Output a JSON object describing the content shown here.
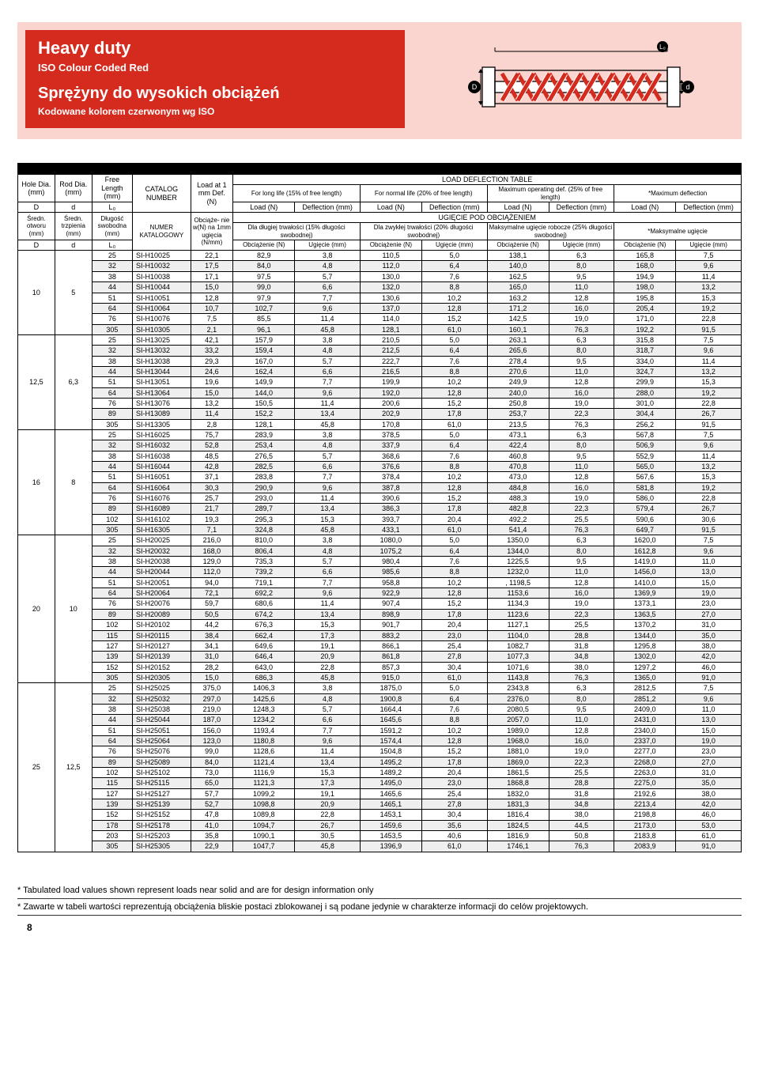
{
  "header": {
    "title_en": "Heavy duty",
    "sub_en": "ISO Colour Coded Red",
    "title_pl": "Sprężyny do wysokich obciążeń",
    "sub_pl": "Kodowane kolorem czerwonym wg ISO",
    "diagram_labels": {
      "L0": "L₀",
      "D": "D",
      "d": "d"
    },
    "band_color": "#fad4ce",
    "title_bg": "#d52b1e",
    "title_fg": "#ffffff",
    "coil_color": "#d52b1e"
  },
  "col_hdr_en": {
    "hole": "Hole Dia. (mm)",
    "rod": "Rod Dia. (mm)",
    "free": "Free Length (mm)",
    "catalog": "CATALOG NUMBER",
    "load": "Load at 1 mm Def. (N)",
    "ldt": "LOAD DEFLECTION TABLE",
    "long": "For long life (15% of free length)",
    "normal": "For normal life (20% of free length)",
    "max_op": "Maximum operating def. (25% of free length)",
    "max_def": "*Maximum deflection",
    "D": "D",
    "d": "d",
    "L0": "L₀",
    "loadN": "Load (N)",
    "defl": "Deflection (mm)"
  },
  "col_hdr_pl": {
    "hole": "Średn. otworu (mm)",
    "rod": "Średn. trzpienia (mm)",
    "free": "Długość swobodna (mm)",
    "catalog": "NUMER KATALOGOWY",
    "load": "Obciąże- nie w(N) na 1mm ugięcia (N/mm)",
    "ldt": "UGIĘCIE POD OBCIĄŻENIEM",
    "long": "Dla długiej trwałości (15% długości swobodnej)",
    "normal": "Dla zwykłej trwałości (20% długości swobodnej)",
    "max_op": "Maksymalne ugięcie robocze (25% długości swobodnej)",
    "max_def": "*Maksymalne ugięcie",
    "D": "D",
    "d": "d",
    "L0": "L₀",
    "loadN": "Obciążenie (N)",
    "defl": "Ugięcie (mm)"
  },
  "groups": [
    {
      "D": "10",
      "d": "5",
      "rows": [
        [
          "25",
          "SI-H10025",
          "22,1",
          "82,9",
          "3,8",
          "110,5",
          "5,0",
          "138,1",
          "6,3",
          "165,8",
          "7,5"
        ],
        [
          "32",
          "SI-H10032",
          "17,5",
          "84,0",
          "4,8",
          "112,0",
          "6,4",
          "140,0",
          "8,0",
          "168,0",
          "9,6"
        ],
        [
          "38",
          "SI-H10038",
          "17,1",
          "97,5",
          "5,7",
          "130,0",
          "7,6",
          "162,5",
          "9,5",
          "194,9",
          "11,4"
        ],
        [
          "44",
          "SI-H10044",
          "15,0",
          "99,0",
          "6,6",
          "132,0",
          "8,8",
          "165,0",
          "11,0",
          "198,0",
          "13,2"
        ],
        [
          "51",
          "SI-H10051",
          "12,8",
          "97,9",
          "7,7",
          "130,6",
          "10,2",
          "163,2",
          "12,8",
          "195,8",
          "15,3"
        ],
        [
          "64",
          "SI-H10064",
          "10,7",
          "102,7",
          "9,6",
          "137,0",
          "12,8",
          "171,2",
          "16,0",
          "205,4",
          "19,2"
        ],
        [
          "76",
          "SI-H10076",
          "7,5",
          "85,5",
          "11,4",
          "114,0",
          "15,2",
          "142,5",
          "19,0",
          "171,0",
          "22,8"
        ],
        [
          "305",
          "SI-H10305",
          "2,1",
          "96,1",
          "45,8",
          "128,1",
          "61,0",
          "160,1",
          "76,3",
          "192,2",
          "91,5"
        ]
      ]
    },
    {
      "D": "12,5",
      "d": "6,3",
      "rows": [
        [
          "25",
          "SI-H13025",
          "42,1",
          "157,9",
          "3,8",
          "210,5",
          "5,0",
          "263,1",
          "6,3",
          "315,8",
          "7,5"
        ],
        [
          "32",
          "SI-H13032",
          "33,2",
          "159,4",
          "4,8",
          "212,5",
          "6,4",
          "265,6",
          "8,0",
          "318,7",
          "9,6"
        ],
        [
          "38",
          "SI-H13038",
          "29,3",
          "167,0",
          "5,7",
          "222,7",
          "7,6",
          "278,4",
          "9,5",
          "334,0",
          "11,4"
        ],
        [
          "44",
          "SI-H13044",
          "24,6",
          "162,4",
          "6,6",
          "216,5",
          "8,8",
          "270,6",
          "11,0",
          "324,7",
          "13,2"
        ],
        [
          "51",
          "SI-H13051",
          "19,6",
          "149,9",
          "7,7",
          "199,9",
          "10,2",
          "249,9",
          "12,8",
          "299,9",
          "15,3"
        ],
        [
          "64",
          "SI-H13064",
          "15,0",
          "144,0",
          "9,6",
          "192,0",
          "12,8",
          "240,0",
          "16,0",
          "288,0",
          "19,2"
        ],
        [
          "76",
          "SI-H13076",
          "13,2",
          "150,5",
          "11,4",
          "200,6",
          "15,2",
          "250,8",
          "19,0",
          "301,0",
          "22,8"
        ],
        [
          "89",
          "SI-H13089",
          "11,4",
          "152,2",
          "13,4",
          "202,9",
          "17,8",
          "253,7",
          "22,3",
          "304,4",
          "26,7"
        ],
        [
          "305",
          "SI-H13305",
          "2,8",
          "128,1",
          "45,8",
          "170,8",
          "61,0",
          "213,5",
          "76,3",
          "256,2",
          "91,5"
        ]
      ]
    },
    {
      "D": "16",
      "d": "8",
      "rows": [
        [
          "25",
          "SI-H16025",
          "75,7",
          "283,9",
          "3,8",
          "378,5",
          "5,0",
          "473,1",
          "6,3",
          "567,8",
          "7,5"
        ],
        [
          "32",
          "SI-H16032",
          "52,8",
          "253,4",
          "4,8",
          "337,9",
          "6,4",
          "422,4",
          "8,0",
          "506,9",
          "9,6"
        ],
        [
          "38",
          "SI-H16038",
          "48,5",
          "276,5",
          "5,7",
          "368,6",
          "7,6",
          "460,8",
          "9,5",
          "552,9",
          "11,4"
        ],
        [
          "44",
          "SI-H16044",
          "42,8",
          "282,5",
          "6,6",
          "376,6",
          "8,8",
          "470,8",
          "11,0",
          "565,0",
          "13,2"
        ],
        [
          "51",
          "SI-H16051",
          "37,1",
          "283,8",
          "7,7",
          "378,4",
          "10,2",
          "473,0",
          "12,8",
          "567,6",
          "15,3"
        ],
        [
          "64",
          "SI-H16064",
          "30,3",
          "290,9",
          "9,6",
          "387,8",
          "12,8",
          "484,8",
          "16,0",
          "581,8",
          "19,2"
        ],
        [
          "76",
          "SI-H16076",
          "25,7",
          "293,0",
          "11,4",
          "390,6",
          "15,2",
          "488,3",
          "19,0",
          "586,0",
          "22,8"
        ],
        [
          "89",
          "SI-H16089",
          "21,7",
          "289,7",
          "13,4",
          "386,3",
          "17,8",
          "482,8",
          "22,3",
          "579,4",
          "26,7"
        ],
        [
          "102",
          "SI-H16102",
          "19,3",
          "295,3",
          "15,3",
          "393,7",
          "20,4",
          "492,2",
          "25,5",
          "590,6",
          "30,6"
        ],
        [
          "305",
          "SI-H16305",
          "7,1",
          "324,8",
          "45,8",
          "433,1",
          "61,0",
          "541,4",
          "76,3",
          "649,7",
          "91,5"
        ]
      ]
    },
    {
      "D": "20",
      "d": "10",
      "rows": [
        [
          "25",
          "SI-H20025",
          "216,0",
          "810,0",
          "3,8",
          "1080,0",
          "5,0",
          "1350,0",
          "6,3",
          "1620,0",
          "7,5"
        ],
        [
          "32",
          "SI-H20032",
          "168,0",
          "806,4",
          "4,8",
          "1075,2",
          "6,4",
          "1344,0",
          "8,0",
          "1612,8",
          "9,6"
        ],
        [
          "38",
          "SI-H20038",
          "129,0",
          "735,3",
          "5,7",
          "980,4",
          "7,6",
          "1225,5",
          "9,5",
          "1419,0",
          "11,0"
        ],
        [
          "44",
          "SI-H20044",
          "112,0",
          "739,2",
          "6,6",
          "985,6",
          "8,8",
          "1232,0",
          "11,0",
          "1456,0",
          "13,0"
        ],
        [
          "51",
          "SI-H20051",
          "94,0",
          "719,1",
          "7,7",
          "958,8",
          "10,2",
          ", 1198,5",
          "12,8",
          "1410,0",
          "15,0"
        ],
        [
          "64",
          "SI-H20064",
          "72,1",
          "692,2",
          "9,6",
          "922,9",
          "12,8",
          "1153,6",
          "16,0",
          "1369,9",
          "19,0"
        ],
        [
          "76",
          "SI-H20076",
          "59,7",
          "680,6",
          "11,4",
          "907,4",
          "15,2",
          "1134,3",
          "19,0",
          "1373,1",
          "23,0"
        ],
        [
          "89",
          "SI-H20089",
          "50,5",
          "674,2",
          "13,4",
          "898,9",
          "17,8",
          "1123,6",
          "22,3",
          "1363,5",
          "27,0"
        ],
        [
          "102",
          "SI-H20102",
          "44,2",
          "676,3",
          "15,3",
          "901,7",
          "20,4",
          "1127,1",
          "25,5",
          "1370,2",
          "31,0"
        ],
        [
          "115",
          "SI-H20115",
          "38,4",
          "662,4",
          "17,3",
          "883,2",
          "23,0",
          "1104,0",
          "28,8",
          "1344,0",
          "35,0"
        ],
        [
          "127",
          "SI-H20127",
          "34,1",
          "649,6",
          "19,1",
          "866,1",
          "25,4",
          "1082,7",
          "31,8",
          "1295,8",
          "38,0"
        ],
        [
          "139",
          "SI-H20139",
          "31,0",
          "646,4",
          "20,9",
          "861,8",
          "27,8",
          "1077,3",
          "34,8",
          "1302,0",
          "42,0"
        ],
        [
          "152",
          "SI-H20152",
          "28,2",
          "643,0",
          "22,8",
          "857,3",
          "30,4",
          "1071,6",
          "38,0",
          "1297,2",
          "46,0"
        ],
        [
          "305",
          "SI-H20305",
          "15,0",
          "686,3",
          "45,8",
          "915,0",
          "61,0",
          "1143,8",
          "76,3",
          "1365,0",
          "91,0"
        ]
      ]
    },
    {
      "D": "25",
      "d": "12,5",
      "rows": [
        [
          "25",
          "SI-H25025",
          "375,0",
          "1406,3",
          "3,8",
          "1875,0",
          "5,0",
          "2343,8",
          "6,3",
          "2812,5",
          "7,5"
        ],
        [
          "32",
          "SI-H25032",
          "297,0",
          "1425,6",
          "4,8",
          "1900,8",
          "6,4",
          "2376,0",
          "8,0",
          "2851,2",
          "9,6"
        ],
        [
          "38",
          "SI-H25038",
          "219,0",
          "1248,3",
          "5,7",
          "1664,4",
          "7,6",
          "2080,5",
          "9,5",
          "2409,0",
          "11,0"
        ],
        [
          "44",
          "SI-H25044",
          "187,0",
          "1234,2",
          "6,6",
          "1645,6",
          "8,8",
          "2057,0",
          "11,0",
          "2431,0",
          "13,0"
        ],
        [
          "51",
          "SI-H25051",
          "156,0",
          "1193,4",
          "7,7",
          "1591,2",
          "10,2",
          "1989,0",
          "12,8",
          "2340,0",
          "15,0"
        ],
        [
          "64",
          "SI-H25064",
          "123,0",
          "1180,8",
          "9,6",
          "1574,4",
          "12,8",
          "1968,0",
          "16,0",
          "2337,0",
          "19,0"
        ],
        [
          "76",
          "SI-H25076",
          "99,0",
          "1128,6",
          "11,4",
          "1504,8",
          "15,2",
          "1881,0",
          "19,0",
          "2277,0",
          "23,0"
        ],
        [
          "89",
          "SI-H25089",
          "84,0",
          "1121,4",
          "13,4",
          "1495,2",
          "17,8",
          "1869,0",
          "22,3",
          "2268,0",
          "27,0"
        ],
        [
          "102",
          "SI-H25102",
          "73,0",
          "1116,9",
          "15,3",
          "1489,2",
          "20,4",
          "1861,5",
          "25,5",
          "2263,0",
          "31,0"
        ],
        [
          "115",
          "SI-H25115",
          "65,0",
          "1121,3",
          "17,3",
          "1495,0",
          "23,0",
          "1868,8",
          "28,8",
          "2275,0",
          "35,0"
        ],
        [
          "127",
          "SI-H25127",
          "57,7",
          "1099,2",
          "19,1",
          "1465,6",
          "25,4",
          "1832,0",
          "31,8",
          "2192,6",
          "38,0"
        ],
        [
          "139",
          "SI-H25139",
          "52,7",
          "1098,8",
          "20,9",
          "1465,1",
          "27,8",
          "1831,3",
          "34,8",
          "2213,4",
          "42,0"
        ],
        [
          "152",
          "SI-H25152",
          "47,8",
          "1089,8",
          "22,8",
          "1453,1",
          "30,4",
          "1816,4",
          "38,0",
          "2198,8",
          "46,0"
        ],
        [
          "178",
          "SI-H25178",
          "41,0",
          "1094,7",
          "26,7",
          "1459,6",
          "35,6",
          "1824,5",
          "44,5",
          "2173,0",
          "53,0"
        ],
        [
          "203",
          "SI-H25203",
          "35,8",
          "1090,1",
          "30,5",
          "1453,5",
          "40,6",
          "1816,9",
          "50,8",
          "2183,8",
          "61,0"
        ],
        [
          "305",
          "SI-H25305",
          "22,9",
          "1047,7",
          "45,8",
          "1396,9",
          "61,0",
          "1746,1",
          "76,3",
          "2083,9",
          "91,0"
        ]
      ]
    }
  ],
  "footnotes": {
    "en": "* Tabulated load values shown represent loads near solid and are for design information only",
    "pl": "* Zawarte w tabeli wartości reprezentują obciążenia bliskie postaci zblokowanej i są podane jedynie w charakterze informacji do celów projektowych."
  },
  "page_number": "8",
  "style": {
    "shade_bg": "#efefef",
    "font_size_body": 9,
    "font_size_header": 9
  }
}
